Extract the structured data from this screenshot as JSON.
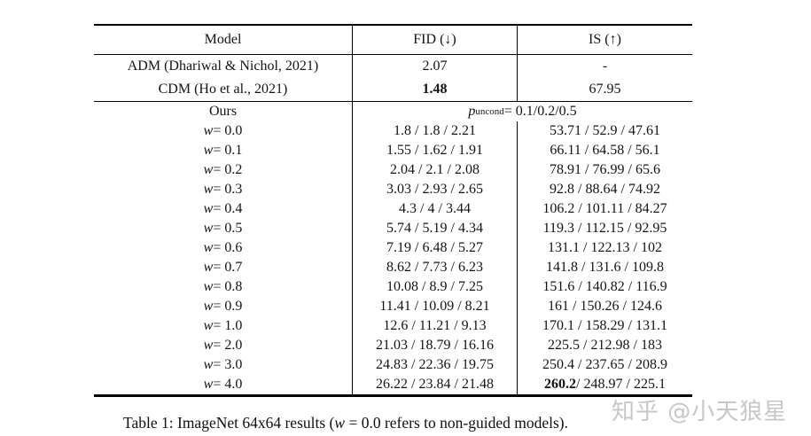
{
  "table": {
    "header": {
      "model": "Model",
      "fid": "FID (↓)",
      "is": "IS (↑)"
    },
    "baselines": [
      {
        "model": "ADM (Dhariwal & Nichol, 2021)",
        "fid": "2.07",
        "is": "-"
      },
      {
        "model": "CDM (Ho et al., 2021)",
        "fid": "**1.48**",
        "is": "67.95"
      }
    ],
    "ours": {
      "label": "Ours",
      "puncond": "*p*~uncond~ = 0.1/0.2/0.5"
    },
    "w_rows": [
      {
        "label": "*w* = 0.0",
        "fid": "1.8 / 1.8 / 2.21",
        "is": "53.71 / 52.9 / 47.61"
      },
      {
        "label": "*w* = 0.1",
        "fid": "1.55 / 1.62 / 1.91",
        "is": "66.11 / 64.58 / 56.1"
      },
      {
        "label": "*w* = 0.2",
        "fid": "2.04 / 2.1 / 2.08",
        "is": "78.91 / 76.99 / 65.6"
      },
      {
        "label": "*w* = 0.3",
        "fid": "3.03 / 2.93 / 2.65",
        "is": "92.8 / 88.64 / 74.92"
      },
      {
        "label": "*w* = 0.4",
        "fid": "4.3 / 4 / 3.44",
        "is": "106.2 / 101.11 / 84.27"
      },
      {
        "label": "*w* = 0.5",
        "fid": "5.74 / 5.19 / 4.34",
        "is": "119.3 / 112.15 / 92.95"
      },
      {
        "label": "*w* = 0.6",
        "fid": "7.19 / 6.48 / 5.27",
        "is": "131.1 / 122.13 / 102"
      },
      {
        "label": "*w* = 0.7",
        "fid": "8.62 / 7.73 / 6.23",
        "is": "141.8 / 131.6 / 109.8"
      },
      {
        "label": "*w* = 0.8",
        "fid": "10.08 / 8.9 / 7.25",
        "is": "151.6 / 140.82 / 116.9"
      },
      {
        "label": "*w* = 0.9",
        "fid": "11.41 / 10.09 / 8.21",
        "is": "161 / 150.26 / 124.6"
      },
      {
        "label": "*w* = 1.0",
        "fid": "12.6 / 11.21 / 9.13",
        "is": "170.1 / 158.29 / 131.1"
      },
      {
        "label": "*w* = 2.0",
        "fid": "21.03 / 18.79 / 16.16",
        "is": "225.5 / 212.98 / 183"
      },
      {
        "label": "*w* = 3.0",
        "fid": "24.83 / 22.36 / 19.75",
        "is": "250.4 / 237.65 / 208.9"
      },
      {
        "label": "*w* = 4.0",
        "fid": "26.22 / 23.84 / 21.48",
        "is": "**260.2** / 248.97 / 225.1"
      }
    ]
  },
  "caption": "Table 1: ImageNet 64x64 results (*w* = 0.0 refers to non-guided models).",
  "watermark": "知乎 @小天狼星",
  "colors": {
    "text": "#141414",
    "rule": "#000000",
    "watermark": "#c7c7c7",
    "background": "#ffffff"
  }
}
